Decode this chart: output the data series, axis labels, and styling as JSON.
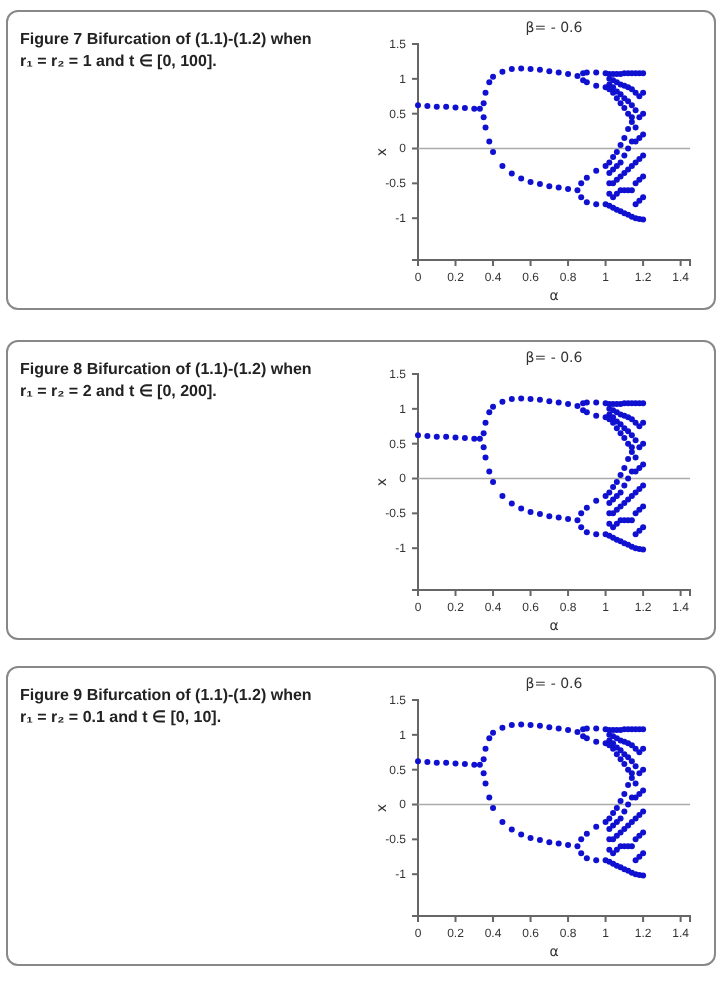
{
  "chart_data": [
    {
      "type": "scatter",
      "title": "β= - 0.6",
      "xlabel": "α",
      "ylabel": "x",
      "annotations": [
        "Figure 7  Bifurcation of (1.1)-(1.2) when r₁ = r₂ = 1 and t ∈ [0, 100]."
      ],
      "xlim": [
        0,
        1.45
      ],
      "ylim": [
        -1.6,
        1.5
      ],
      "xticks": [
        0,
        0.2,
        0.4,
        0.6,
        0.8,
        1,
        1.2,
        1.4
      ],
      "yticks": [
        -1,
        -0.5,
        0,
        0.5,
        1,
        1.5
      ],
      "marker": "circle",
      "ref_lines": [
        {
          "axis": "y",
          "value": 0,
          "color": "#aaaaaa"
        }
      ],
      "series": [
        {
          "color": "#1010d0",
          "x": [
            0,
            0.05,
            0.1,
            0.15,
            0.2,
            0.25,
            0.3,
            0.33,
            0.35,
            0.36,
            0.38,
            0.4,
            0.45,
            0.5,
            0.55,
            0.6,
            0.65,
            0.7,
            0.75,
            0.8,
            0.85,
            0.88,
            0.9,
            0.95,
            1.0,
            0.88,
            0.9,
            0.95,
            1.0,
            0.35,
            0.36,
            0.38,
            0.4,
            0.45,
            0.5,
            0.55,
            0.6,
            0.65,
            0.7,
            0.75,
            0.8,
            0.85,
            0.87,
            0.9,
            0.95,
            1.0,
            0.87,
            0.9,
            0.95,
            1.0,
            1.02,
            1.02,
            1.02,
            1.02,
            1.02,
            1.02,
            1.02,
            1.02,
            1.02,
            1.04,
            1.04,
            1.04,
            1.04,
            1.04,
            1.04,
            1.04,
            1.04,
            1.04,
            1.06,
            1.06,
            1.06,
            1.06,
            1.06,
            1.06,
            1.06,
            1.06,
            1.06,
            1.08,
            1.08,
            1.08,
            1.08,
            1.08,
            1.08,
            1.08,
            1.08,
            1.08,
            1.1,
            1.1,
            1.1,
            1.1,
            1.1,
            1.1,
            1.1,
            1.1,
            1.1,
            1.12,
            1.12,
            1.12,
            1.12,
            1.12,
            1.12,
            1.12,
            1.12,
            1.12,
            1.14,
            1.14,
            1.14,
            1.14,
            1.14,
            1.14,
            1.14,
            1.14,
            1.14,
            1.16,
            1.16,
            1.16,
            1.16,
            1.16,
            1.16,
            1.16,
            1.16,
            1.16,
            1.18,
            1.18,
            1.18,
            1.18,
            1.18,
            1.18,
            1.18,
            1.18,
            1.2,
            1.2,
            1.2,
            1.2,
            1.2,
            1.2,
            1.2,
            1.2
          ],
          "values": [
            0.62,
            0.61,
            0.6,
            0.6,
            0.59,
            0.58,
            0.57,
            0.57,
            0.65,
            0.8,
            0.95,
            1.03,
            1.1,
            1.14,
            1.15,
            1.14,
            1.13,
            1.11,
            1.09,
            1.07,
            1.04,
            1.08,
            1.09,
            1.09,
            1.08,
            0.98,
            0.95,
            0.9,
            0.88,
            0.45,
            0.3,
            0.1,
            -0.05,
            -0.25,
            -0.36,
            -0.43,
            -0.48,
            -0.51,
            -0.54,
            -0.56,
            -0.58,
            -0.6,
            -0.5,
            -0.42,
            -0.32,
            -0.25,
            -0.7,
            -0.77,
            -0.8,
            -0.8,
            1.07,
            1.0,
            0.92,
            0.85,
            -0.2,
            -0.35,
            -0.5,
            -0.65,
            -0.82,
            1.07,
            0.98,
            0.88,
            0.8,
            -0.12,
            -0.3,
            -0.5,
            -0.7,
            -0.85,
            1.07,
            0.95,
            0.82,
            0.72,
            -0.05,
            -0.25,
            -0.45,
            -0.65,
            -0.88,
            1.07,
            0.92,
            0.78,
            0.65,
            0.05,
            -0.2,
            -0.4,
            -0.6,
            -0.9,
            1.08,
            0.9,
            0.72,
            0.58,
            0.15,
            -0.1,
            -0.35,
            -0.6,
            -0.93,
            1.08,
            0.88,
            0.68,
            0.5,
            0.28,
            0,
            -0.3,
            -0.6,
            -0.95,
            1.08,
            0.85,
            0.62,
            0.45,
            0.38,
            0.1,
            -0.25,
            -0.6,
            -0.98,
            1.08,
            0.8,
            0.55,
            0.3,
            0.1,
            -0.2,
            -0.5,
            -0.8,
            -1.0,
            1.08,
            0.75,
            0.45,
            0.15,
            -0.15,
            -0.45,
            -0.75,
            -1.01,
            1.08,
            0.8,
            0.5,
            0.2,
            -0.1,
            -0.4,
            -0.7,
            -1.02
          ]
        }
      ]
    },
    {
      "type": "scatter",
      "title": "β= - 0.6",
      "xlabel": "α",
      "ylabel": "x",
      "annotations": [
        "Figure 8  Bifurcation of (1.1)-(1.2) when r₁ = r₂ = 2 and t ∈ [0, 200]."
      ],
      "xlim": [
        0,
        1.45
      ],
      "ylim": [
        -1.6,
        1.5
      ],
      "xticks": [
        0,
        0.2,
        0.4,
        0.6,
        0.8,
        1,
        1.2,
        1.4
      ],
      "yticks": [
        -1,
        -0.5,
        0,
        0.5,
        1,
        1.5
      ],
      "marker": "circle",
      "ref_lines": [
        {
          "axis": "y",
          "value": 0,
          "color": "#aaaaaa"
        }
      ],
      "series": [
        {
          "color": "#1010d0",
          "x": [
            0,
            0.05,
            0.1,
            0.15,
            0.2,
            0.25,
            0.3,
            0.33,
            0.35,
            0.36,
            0.38,
            0.4,
            0.45,
            0.5,
            0.55,
            0.6,
            0.65,
            0.7,
            0.75,
            0.8,
            0.85,
            0.88,
            0.9,
            0.95,
            1.0,
            0.88,
            0.9,
            0.95,
            1.0,
            0.35,
            0.36,
            0.38,
            0.4,
            0.45,
            0.5,
            0.55,
            0.6,
            0.65,
            0.7,
            0.75,
            0.8,
            0.85,
            0.87,
            0.9,
            0.95,
            1.0,
            0.87,
            0.9,
            0.95,
            1.0,
            1.02,
            1.02,
            1.02,
            1.02,
            1.02,
            1.02,
            1.02,
            1.02,
            1.02,
            1.04,
            1.04,
            1.04,
            1.04,
            1.04,
            1.04,
            1.04,
            1.04,
            1.04,
            1.06,
            1.06,
            1.06,
            1.06,
            1.06,
            1.06,
            1.06,
            1.06,
            1.06,
            1.08,
            1.08,
            1.08,
            1.08,
            1.08,
            1.08,
            1.08,
            1.08,
            1.08,
            1.1,
            1.1,
            1.1,
            1.1,
            1.1,
            1.1,
            1.1,
            1.1,
            1.1,
            1.12,
            1.12,
            1.12,
            1.12,
            1.12,
            1.12,
            1.12,
            1.12,
            1.12,
            1.14,
            1.14,
            1.14,
            1.14,
            1.14,
            1.14,
            1.14,
            1.14,
            1.14,
            1.16,
            1.16,
            1.16,
            1.16,
            1.16,
            1.16,
            1.16,
            1.16,
            1.16,
            1.18,
            1.18,
            1.18,
            1.18,
            1.18,
            1.18,
            1.18,
            1.18,
            1.2,
            1.2,
            1.2,
            1.2,
            1.2,
            1.2,
            1.2,
            1.2
          ],
          "values": [
            0.62,
            0.61,
            0.6,
            0.6,
            0.59,
            0.58,
            0.57,
            0.57,
            0.65,
            0.8,
            0.95,
            1.03,
            1.1,
            1.14,
            1.15,
            1.14,
            1.13,
            1.11,
            1.09,
            1.07,
            1.04,
            1.08,
            1.09,
            1.09,
            1.08,
            0.98,
            0.95,
            0.9,
            0.88,
            0.45,
            0.3,
            0.1,
            -0.05,
            -0.25,
            -0.36,
            -0.43,
            -0.48,
            -0.51,
            -0.54,
            -0.56,
            -0.58,
            -0.6,
            -0.5,
            -0.42,
            -0.32,
            -0.25,
            -0.7,
            -0.77,
            -0.8,
            -0.8,
            1.07,
            1.0,
            0.92,
            0.85,
            -0.2,
            -0.35,
            -0.5,
            -0.65,
            -0.82,
            1.07,
            0.98,
            0.88,
            0.8,
            -0.12,
            -0.3,
            -0.5,
            -0.7,
            -0.85,
            1.07,
            0.95,
            0.82,
            0.72,
            -0.05,
            -0.25,
            -0.45,
            -0.65,
            -0.88,
            1.07,
            0.92,
            0.78,
            0.65,
            0.05,
            -0.2,
            -0.4,
            -0.6,
            -0.9,
            1.08,
            0.9,
            0.72,
            0.58,
            0.15,
            -0.1,
            -0.35,
            -0.6,
            -0.93,
            1.08,
            0.88,
            0.68,
            0.5,
            0.28,
            0,
            -0.3,
            -0.6,
            -0.95,
            1.08,
            0.85,
            0.62,
            0.45,
            0.38,
            0.1,
            -0.25,
            -0.6,
            -0.98,
            1.08,
            0.8,
            0.55,
            0.3,
            0.1,
            -0.2,
            -0.5,
            -0.8,
            -1.0,
            1.08,
            0.75,
            0.45,
            0.15,
            -0.15,
            -0.45,
            -0.75,
            -1.01,
            1.08,
            0.8,
            0.5,
            0.2,
            -0.1,
            -0.4,
            -0.7,
            -1.02
          ]
        }
      ]
    },
    {
      "type": "scatter",
      "title": "β= - 0.6",
      "xlabel": "α",
      "ylabel": "x",
      "annotations": [
        "Figure 9  Bifurcation of (1.1)-(1.2) when r₁ = r₂ = 0.1 and t ∈ [0, 10]."
      ],
      "xlim": [
        0,
        1.45
      ],
      "ylim": [
        -1.6,
        1.5
      ],
      "xticks": [
        0,
        0.2,
        0.4,
        0.6,
        0.8,
        1,
        1.2,
        1.4
      ],
      "yticks": [
        -1,
        -0.5,
        0,
        0.5,
        1,
        1.5
      ],
      "marker": "circle",
      "ref_lines": [
        {
          "axis": "y",
          "value": 0,
          "color": "#aaaaaa"
        }
      ],
      "series": [
        {
          "color": "#1010d0",
          "x": [
            0,
            0.05,
            0.1,
            0.15,
            0.2,
            0.25,
            0.3,
            0.33,
            0.35,
            0.36,
            0.38,
            0.4,
            0.45,
            0.5,
            0.55,
            0.6,
            0.65,
            0.7,
            0.75,
            0.8,
            0.85,
            0.88,
            0.9,
            0.95,
            1.0,
            0.88,
            0.9,
            0.95,
            1.0,
            0.35,
            0.36,
            0.38,
            0.4,
            0.45,
            0.5,
            0.55,
            0.6,
            0.65,
            0.7,
            0.75,
            0.8,
            0.85,
            0.87,
            0.9,
            0.95,
            1.0,
            0.87,
            0.9,
            0.95,
            1.0,
            1.02,
            1.02,
            1.02,
            1.02,
            1.02,
            1.02,
            1.02,
            1.02,
            1.02,
            1.04,
            1.04,
            1.04,
            1.04,
            1.04,
            1.04,
            1.04,
            1.04,
            1.04,
            1.06,
            1.06,
            1.06,
            1.06,
            1.06,
            1.06,
            1.06,
            1.06,
            1.06,
            1.08,
            1.08,
            1.08,
            1.08,
            1.08,
            1.08,
            1.08,
            1.08,
            1.08,
            1.1,
            1.1,
            1.1,
            1.1,
            1.1,
            1.1,
            1.1,
            1.1,
            1.1,
            1.12,
            1.12,
            1.12,
            1.12,
            1.12,
            1.12,
            1.12,
            1.12,
            1.12,
            1.14,
            1.14,
            1.14,
            1.14,
            1.14,
            1.14,
            1.14,
            1.14,
            1.14,
            1.16,
            1.16,
            1.16,
            1.16,
            1.16,
            1.16,
            1.16,
            1.16,
            1.16,
            1.18,
            1.18,
            1.18,
            1.18,
            1.18,
            1.18,
            1.18,
            1.18,
            1.2,
            1.2,
            1.2,
            1.2,
            1.2,
            1.2,
            1.2,
            1.2
          ],
          "values": [
            0.62,
            0.61,
            0.6,
            0.6,
            0.59,
            0.58,
            0.57,
            0.57,
            0.65,
            0.8,
            0.95,
            1.03,
            1.1,
            1.14,
            1.15,
            1.14,
            1.13,
            1.11,
            1.09,
            1.07,
            1.04,
            1.08,
            1.09,
            1.09,
            1.08,
            0.98,
            0.95,
            0.9,
            0.88,
            0.45,
            0.3,
            0.1,
            -0.05,
            -0.25,
            -0.36,
            -0.43,
            -0.48,
            -0.51,
            -0.54,
            -0.56,
            -0.58,
            -0.6,
            -0.5,
            -0.42,
            -0.32,
            -0.25,
            -0.7,
            -0.77,
            -0.8,
            -0.8,
            1.07,
            1.0,
            0.92,
            0.85,
            -0.2,
            -0.35,
            -0.5,
            -0.65,
            -0.82,
            1.07,
            0.98,
            0.88,
            0.8,
            -0.12,
            -0.3,
            -0.5,
            -0.7,
            -0.85,
            1.07,
            0.95,
            0.82,
            0.72,
            -0.05,
            -0.25,
            -0.45,
            -0.65,
            -0.88,
            1.07,
            0.92,
            0.78,
            0.65,
            0.05,
            -0.2,
            -0.4,
            -0.6,
            -0.9,
            1.08,
            0.9,
            0.72,
            0.58,
            0.15,
            -0.1,
            -0.35,
            -0.6,
            -0.93,
            1.08,
            0.88,
            0.68,
            0.5,
            0.28,
            0,
            -0.3,
            -0.6,
            -0.95,
            1.08,
            0.85,
            0.62,
            0.45,
            0.38,
            0.1,
            -0.25,
            -0.6,
            -0.98,
            1.08,
            0.8,
            0.55,
            0.3,
            0.1,
            -0.2,
            -0.5,
            -0.8,
            -1.0,
            1.08,
            0.75,
            0.45,
            0.15,
            -0.15,
            -0.45,
            -0.75,
            -1.01,
            1.08,
            0.8,
            0.5,
            0.2,
            -0.1,
            -0.4,
            -0.7,
            -1.02
          ]
        }
      ]
    }
  ]
}
